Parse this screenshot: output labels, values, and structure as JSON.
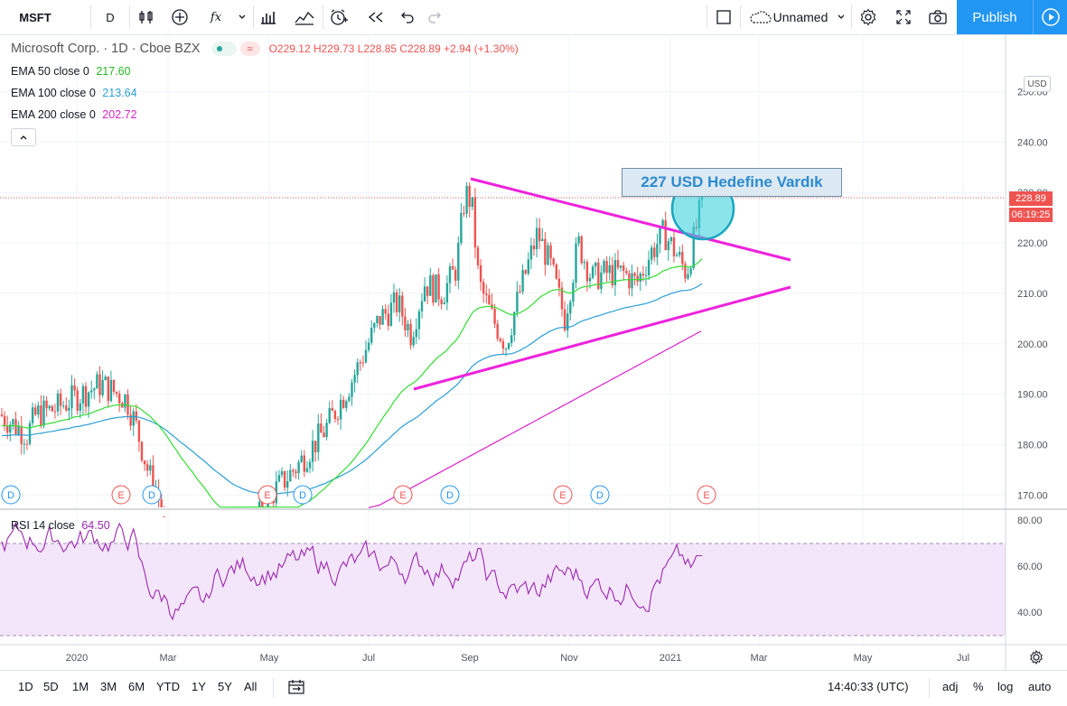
{
  "toolbar": {
    "symbol": "MSFT",
    "interval": "D",
    "fx_label": "fx",
    "layout_name": "Unnamed",
    "publish_label": "Publish"
  },
  "legend": {
    "title": "Microsoft Corp. · 1D · Cboe BZX",
    "ohlc": "O229.12 H229.73 L228.85 C228.89 +2.94 (+1.30%)",
    "ema50_label": "EMA 50 close 0",
    "ema50_value": "217.60",
    "ema100_label": "EMA 100 close 0",
    "ema100_value": "213.64",
    "ema200_label": "EMA 200 close 0",
    "ema200_value": "202.72",
    "rsi_label": "RSI 14 close",
    "rsi_value": "64.50"
  },
  "annotation": {
    "text": "227 USD Hedefine Vardık"
  },
  "price_axis": {
    "currency": "USD",
    "last_price": "228.89",
    "countdown": "06:19:25",
    "ticks": [
      "250.00",
      "240.00",
      "230.00",
      "220.00",
      "210.00",
      "200.00",
      "190.00",
      "180.00",
      "170.00"
    ],
    "rsi_ticks": [
      "80.00",
      "60.00",
      "40.00"
    ]
  },
  "time_axis": {
    "labels": [
      "2020",
      "Mar",
      "May",
      "Jul",
      "Sep",
      "Nov",
      "2021",
      "Mar",
      "May",
      "Jul"
    ]
  },
  "events": [
    "D",
    "E",
    "D",
    "E",
    "D",
    "E",
    "D",
    "E",
    "D",
    "E"
  ],
  "bottombar": {
    "ranges": [
      "1D",
      "5D",
      "1M",
      "3M",
      "6M",
      "YTD",
      "1Y",
      "5Y",
      "All"
    ],
    "time": "14:40:33 (UTC)",
    "adj": "adj",
    "percent": "%",
    "log": "log",
    "auto": "auto"
  },
  "colors": {
    "ema50": "#33dd33",
    "ema100": "#2a9fd6",
    "ema200": "#dd22cc",
    "rsi": "#9c27b0",
    "up": "#26a69a",
    "down": "#ef5350",
    "trend": "#ee22dd",
    "accent": "#2196f3"
  },
  "chart_data": {
    "type": "candlestick",
    "symbol": "MSFT",
    "interval": "1D",
    "ylim": [
      166,
      262
    ],
    "trendlines": [
      {
        "from": [
          "2020-08-31",
          233
        ],
        "to": [
          "2021-03-10",
          216.5
        ]
      },
      {
        "from": [
          "2020-07-12",
          191
        ],
        "to": [
          "2021-03-10",
          211.5
        ]
      }
    ],
    "series": [
      {
        "name": "EMA 50 close 0",
        "last": 217.6
      },
      {
        "name": "EMA 100 close 0",
        "last": 213.64
      },
      {
        "name": "EMA 200 close 0",
        "last": 202.72
      }
    ],
    "rsi": {
      "name": "RSI 14 close",
      "last": 64.5,
      "bands": [
        70,
        30
      ]
    }
  }
}
